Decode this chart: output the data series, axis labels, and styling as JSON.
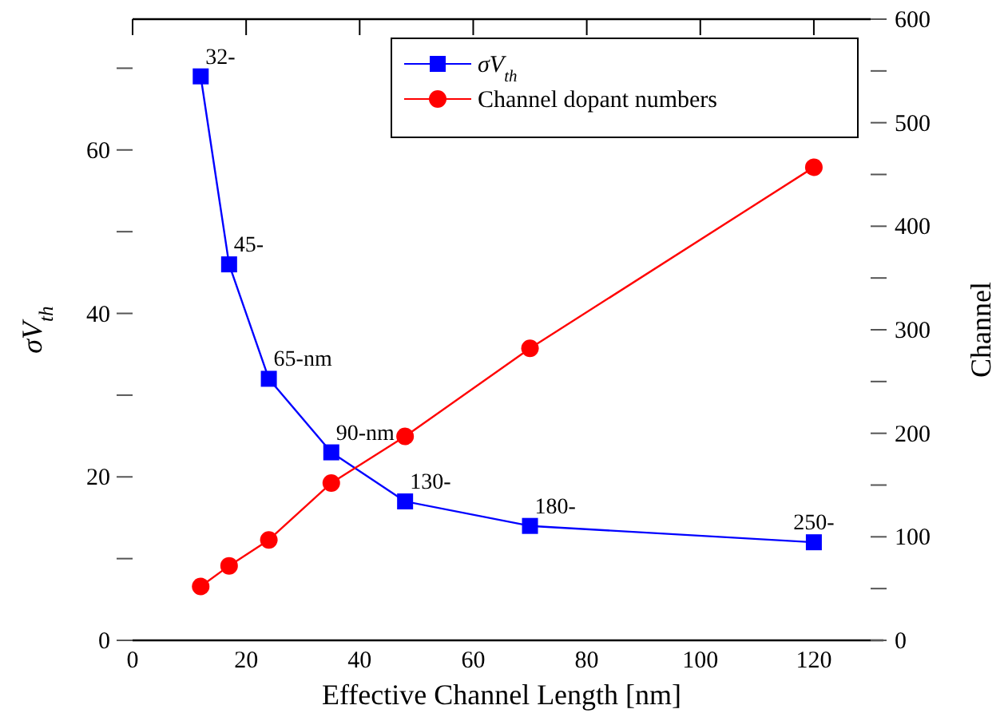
{
  "chart_data": {
    "type": "line",
    "xlabel": "Effective Channel Length [nm]",
    "ylabel": "σV$_{th}$",
    "y2label": "Channel",
    "x": [
      12,
      17,
      24,
      35,
      48,
      70,
      120
    ],
    "series": [
      {
        "name": "σV$_{th}$",
        "color": "#0000ff",
        "marker": "square",
        "values": [
          69,
          46,
          32,
          23,
          17,
          14,
          12
        ]
      },
      {
        "name": "Channel dopant numbers",
        "color": "#ff0000",
        "marker": "circle",
        "axis": "y2",
        "values": [
          52,
          72,
          97,
          152,
          197,
          282,
          457
        ]
      }
    ],
    "xlim": [
      0,
      130
    ],
    "xticks": [
      0,
      20,
      40,
      60,
      80,
      100,
      120
    ],
    "ylim": [
      0,
      76
    ],
    "yticks": [
      0,
      {
        "value": 10,
        "label": null
      },
      20,
      {
        "value": 30,
        "label": null
      },
      40,
      {
        "value": 50,
        "label": null
      },
      60,
      {
        "value": 70,
        "label": null
      }
    ],
    "y2lim": [
      0,
      600
    ],
    "y2ticks": [
      0,
      {
        "value": 50,
        "label": null
      },
      100,
      {
        "value": 150,
        "label": null
      },
      200,
      {
        "value": 250,
        "label": null
      },
      300,
      {
        "value": 350,
        "label": null
      },
      400,
      {
        "value": 450,
        "label": null
      },
      500,
      {
        "value": 550,
        "label": null
      },
      600
    ],
    "annotations": [
      {
        "text": "32-",
        "x": 12,
        "y": 69
      },
      {
        "text": "45-",
        "x": 17,
        "y": 46
      },
      {
        "text": "65-nm",
        "x": 24,
        "y": 32
      },
      {
        "text": "90-nm",
        "x": 35,
        "y": 23
      },
      {
        "text": "130-",
        "x": 48,
        "y": 17
      },
      {
        "text": "180-",
        "x": 70,
        "y": 14
      },
      {
        "text": "250-",
        "x": 120,
        "y": 12
      }
    ],
    "legend": "top right",
    "grid": false,
    "line_style": "solid"
  }
}
